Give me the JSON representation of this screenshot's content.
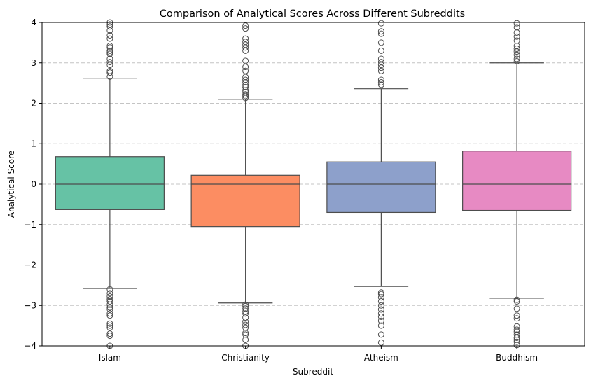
{
  "chart_data": {
    "type": "box",
    "title": "Comparison of Analytical Scores Across Different Subreddits",
    "xlabel": "Subreddit",
    "ylabel": "Analytical Score",
    "ylim": [
      -4,
      4
    ],
    "yticks": [
      -4,
      -3,
      -2,
      -1,
      0,
      1,
      2,
      3,
      4
    ],
    "ytick_labels": [
      "−4",
      "−3",
      "−2",
      "−1",
      "0",
      "1",
      "2",
      "3",
      "4"
    ],
    "grid": "y-dashed",
    "categories": [
      "Islam",
      "Christianity",
      "Atheism",
      "Buddhism"
    ],
    "boxes": [
      {
        "category": "Islam",
        "color": "#66c2a5",
        "q1": -0.63,
        "median": 0.0,
        "q3": 0.68,
        "whisker_low": -2.58,
        "whisker_high": 2.62,
        "fliers": [
          2.66,
          2.76,
          2.8,
          2.95,
          3.02,
          3.1,
          3.22,
          3.26,
          3.3,
          3.38,
          3.42,
          3.6,
          3.68,
          3.8,
          3.9,
          3.95,
          4.0,
          -2.6,
          -2.7,
          -2.78,
          -2.85,
          -2.9,
          -2.98,
          -3.05,
          -3.1,
          -3.2,
          -3.25,
          -3.45,
          -3.5,
          -3.55,
          -3.7,
          -3.75,
          -4.0
        ]
      },
      {
        "category": "Christianity",
        "color": "#fc8d62",
        "q1": -1.05,
        "median": 0.0,
        "q3": 0.22,
        "whisker_low": -2.94,
        "whisker_high": 2.1,
        "fliers": [
          2.13,
          2.18,
          2.22,
          2.28,
          2.32,
          2.4,
          2.45,
          2.52,
          2.58,
          2.65,
          2.8,
          2.9,
          3.05,
          3.3,
          3.38,
          3.45,
          3.52,
          3.6,
          3.85,
          3.92,
          -2.98,
          -3.02,
          -3.08,
          -3.15,
          -3.2,
          -3.3,
          -3.4,
          -3.48,
          -3.55,
          -3.68,
          -3.72,
          -3.85,
          -4.0
        ]
      },
      {
        "category": "Atheism",
        "color": "#8da0cb",
        "q1": -0.7,
        "median": 0.0,
        "q3": 0.55,
        "whisker_low": -2.53,
        "whisker_high": 2.36,
        "fliers": [
          2.46,
          2.52,
          2.58,
          2.8,
          2.88,
          2.95,
          3.02,
          3.1,
          3.3,
          3.5,
          3.72,
          3.78,
          3.98,
          -2.68,
          -2.72,
          -2.8,
          -2.9,
          -3.0,
          -3.1,
          -3.2,
          -3.28,
          -3.38,
          -3.5,
          -3.72,
          -3.92
        ]
      },
      {
        "category": "Buddhism",
        "color": "#e78ac3",
        "q1": -0.65,
        "median": 0.0,
        "q3": 0.82,
        "whisker_low": -2.82,
        "whisker_high": 3.0,
        "fliers": [
          3.04,
          3.1,
          3.2,
          3.28,
          3.35,
          3.42,
          3.55,
          3.65,
          3.75,
          3.88,
          3.98,
          -2.86,
          -2.9,
          -3.08,
          -3.25,
          -3.32,
          -3.52,
          -3.6,
          -3.65,
          -3.72,
          -3.8,
          -3.85,
          -3.9,
          -3.98
        ]
      }
    ]
  }
}
